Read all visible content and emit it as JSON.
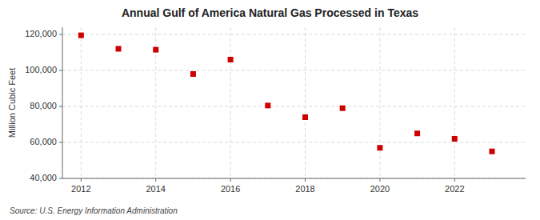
{
  "chart_data": {
    "type": "scatter",
    "title": "Annual Gulf of America Natural Gas Processed in Texas",
    "ylabel": "Million Cubic Feet",
    "annotations": [
      "Source: U.S. Energy Information Administration"
    ],
    "x": [
      2012,
      2013,
      2014,
      2015,
      2016,
      2017,
      2018,
      2019,
      2020,
      2021,
      2022,
      2023
    ],
    "values": [
      119500,
      112000,
      111500,
      98000,
      106000,
      80500,
      74000,
      79000,
      57000,
      65000,
      62000,
      55000
    ],
    "color": "#cc0000",
    "marker": "square",
    "xlim": [
      2011.5,
      2023.9
    ],
    "xticks": [
      2012,
      2014,
      2016,
      2018,
      2020,
      2022
    ],
    "ylim": [
      40000,
      124000
    ],
    "yticks": [
      {
        "value": 40000,
        "label": "40,000"
      },
      {
        "value": 60000,
        "label": "60,000"
      },
      {
        "value": 80000,
        "label": "80,000"
      },
      {
        "value": 100000,
        "label": "100,000"
      },
      {
        "value": 120000,
        "label": "120,000"
      }
    ],
    "grid": true
  }
}
